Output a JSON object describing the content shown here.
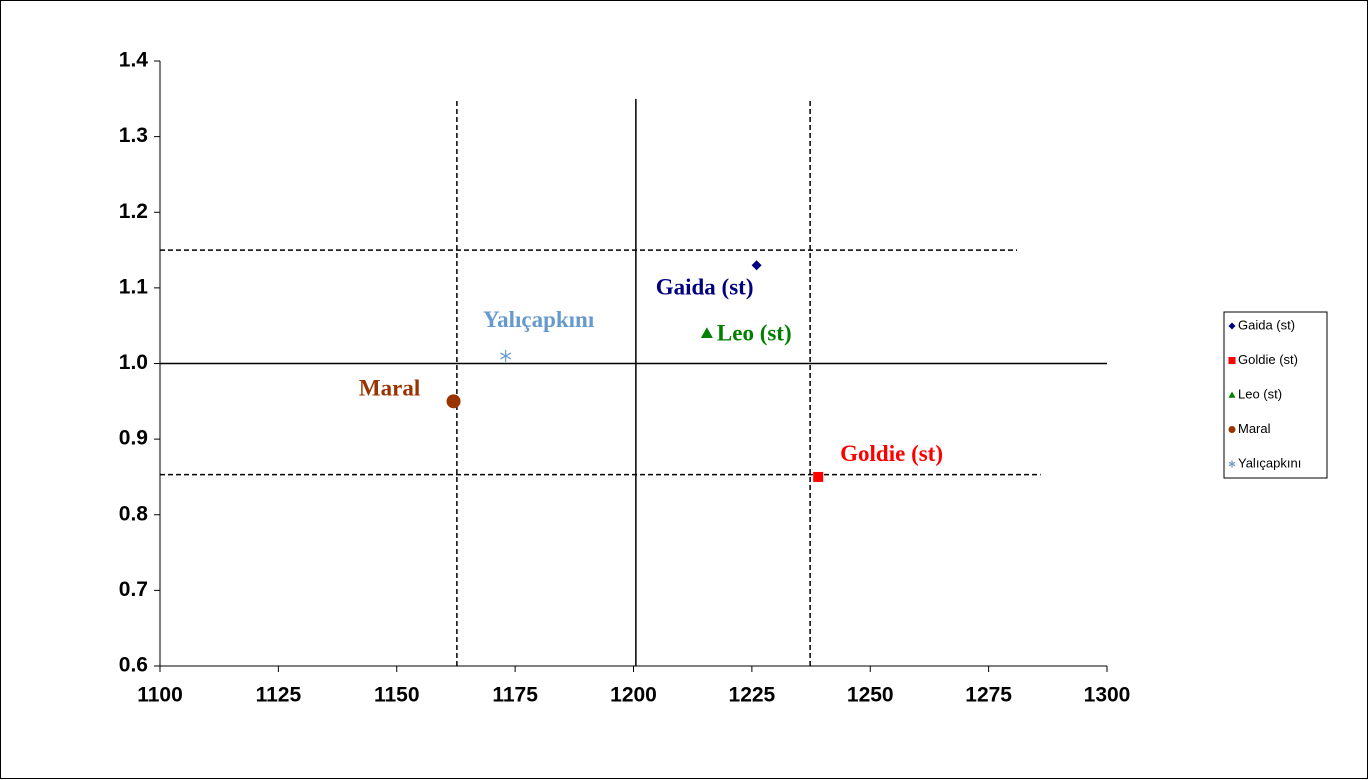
{
  "chart_data": {
    "type": "scatter",
    "xlim": [
      1100,
      1300
    ],
    "xticks": [
      1100,
      1125,
      1150,
      1175,
      1200,
      1225,
      1250,
      1275,
      1300
    ],
    "ylim": [
      0.6,
      1.4
    ],
    "yticks": [
      0.6,
      0.7,
      0.8,
      0.9,
      {
        "value": 1,
        "label": "1.0"
      },
      1.1,
      1.2,
      1.3,
      1.4
    ],
    "series": [
      {
        "name": "Gaida (st)",
        "color": "#000080",
        "marker": "diamond",
        "x": [
          1226
        ],
        "y": [
          1.13
        ]
      },
      {
        "name": "Goldie (st)",
        "color": "#ff0000",
        "marker": "square",
        "x": [
          1239
        ],
        "y": [
          0.85
        ]
      },
      {
        "name": "Leo (st)",
        "color": "#008000",
        "marker": "triangle",
        "x": [
          1215.5
        ],
        "y": [
          1.04
        ]
      },
      {
        "name": "Maral",
        "color": "#993300",
        "marker": "circle",
        "x": [
          1162
        ],
        "y": [
          0.95
        ]
      },
      {
        "name": "Yalıçapkını",
        "color": "#6699cc",
        "marker": "asterisk",
        "x": [
          1173
        ],
        "y": [
          1.01
        ]
      }
    ],
    "reference_lines": [
      {
        "axis": "x",
        "value": 1162.7,
        "style": "dashed",
        "span": [
          0.6,
          1.35
        ]
      },
      {
        "axis": "x",
        "value": 1200.5,
        "style": "solid",
        "span": [
          0.6,
          1.35
        ]
      },
      {
        "axis": "x",
        "value": 1237.3,
        "style": "dashed",
        "span": [
          0.6,
          1.35
        ]
      },
      {
        "axis": "y",
        "value": 1.15,
        "style": "dashed",
        "span": [
          1100,
          1281
        ]
      },
      {
        "axis": "y",
        "value": 1,
        "style": "solid",
        "span": [
          1100,
          1300
        ]
      },
      {
        "axis": "y",
        "value": 0.853,
        "style": "dashed",
        "span": [
          1100,
          1286
        ]
      }
    ],
    "legend": "right"
  }
}
